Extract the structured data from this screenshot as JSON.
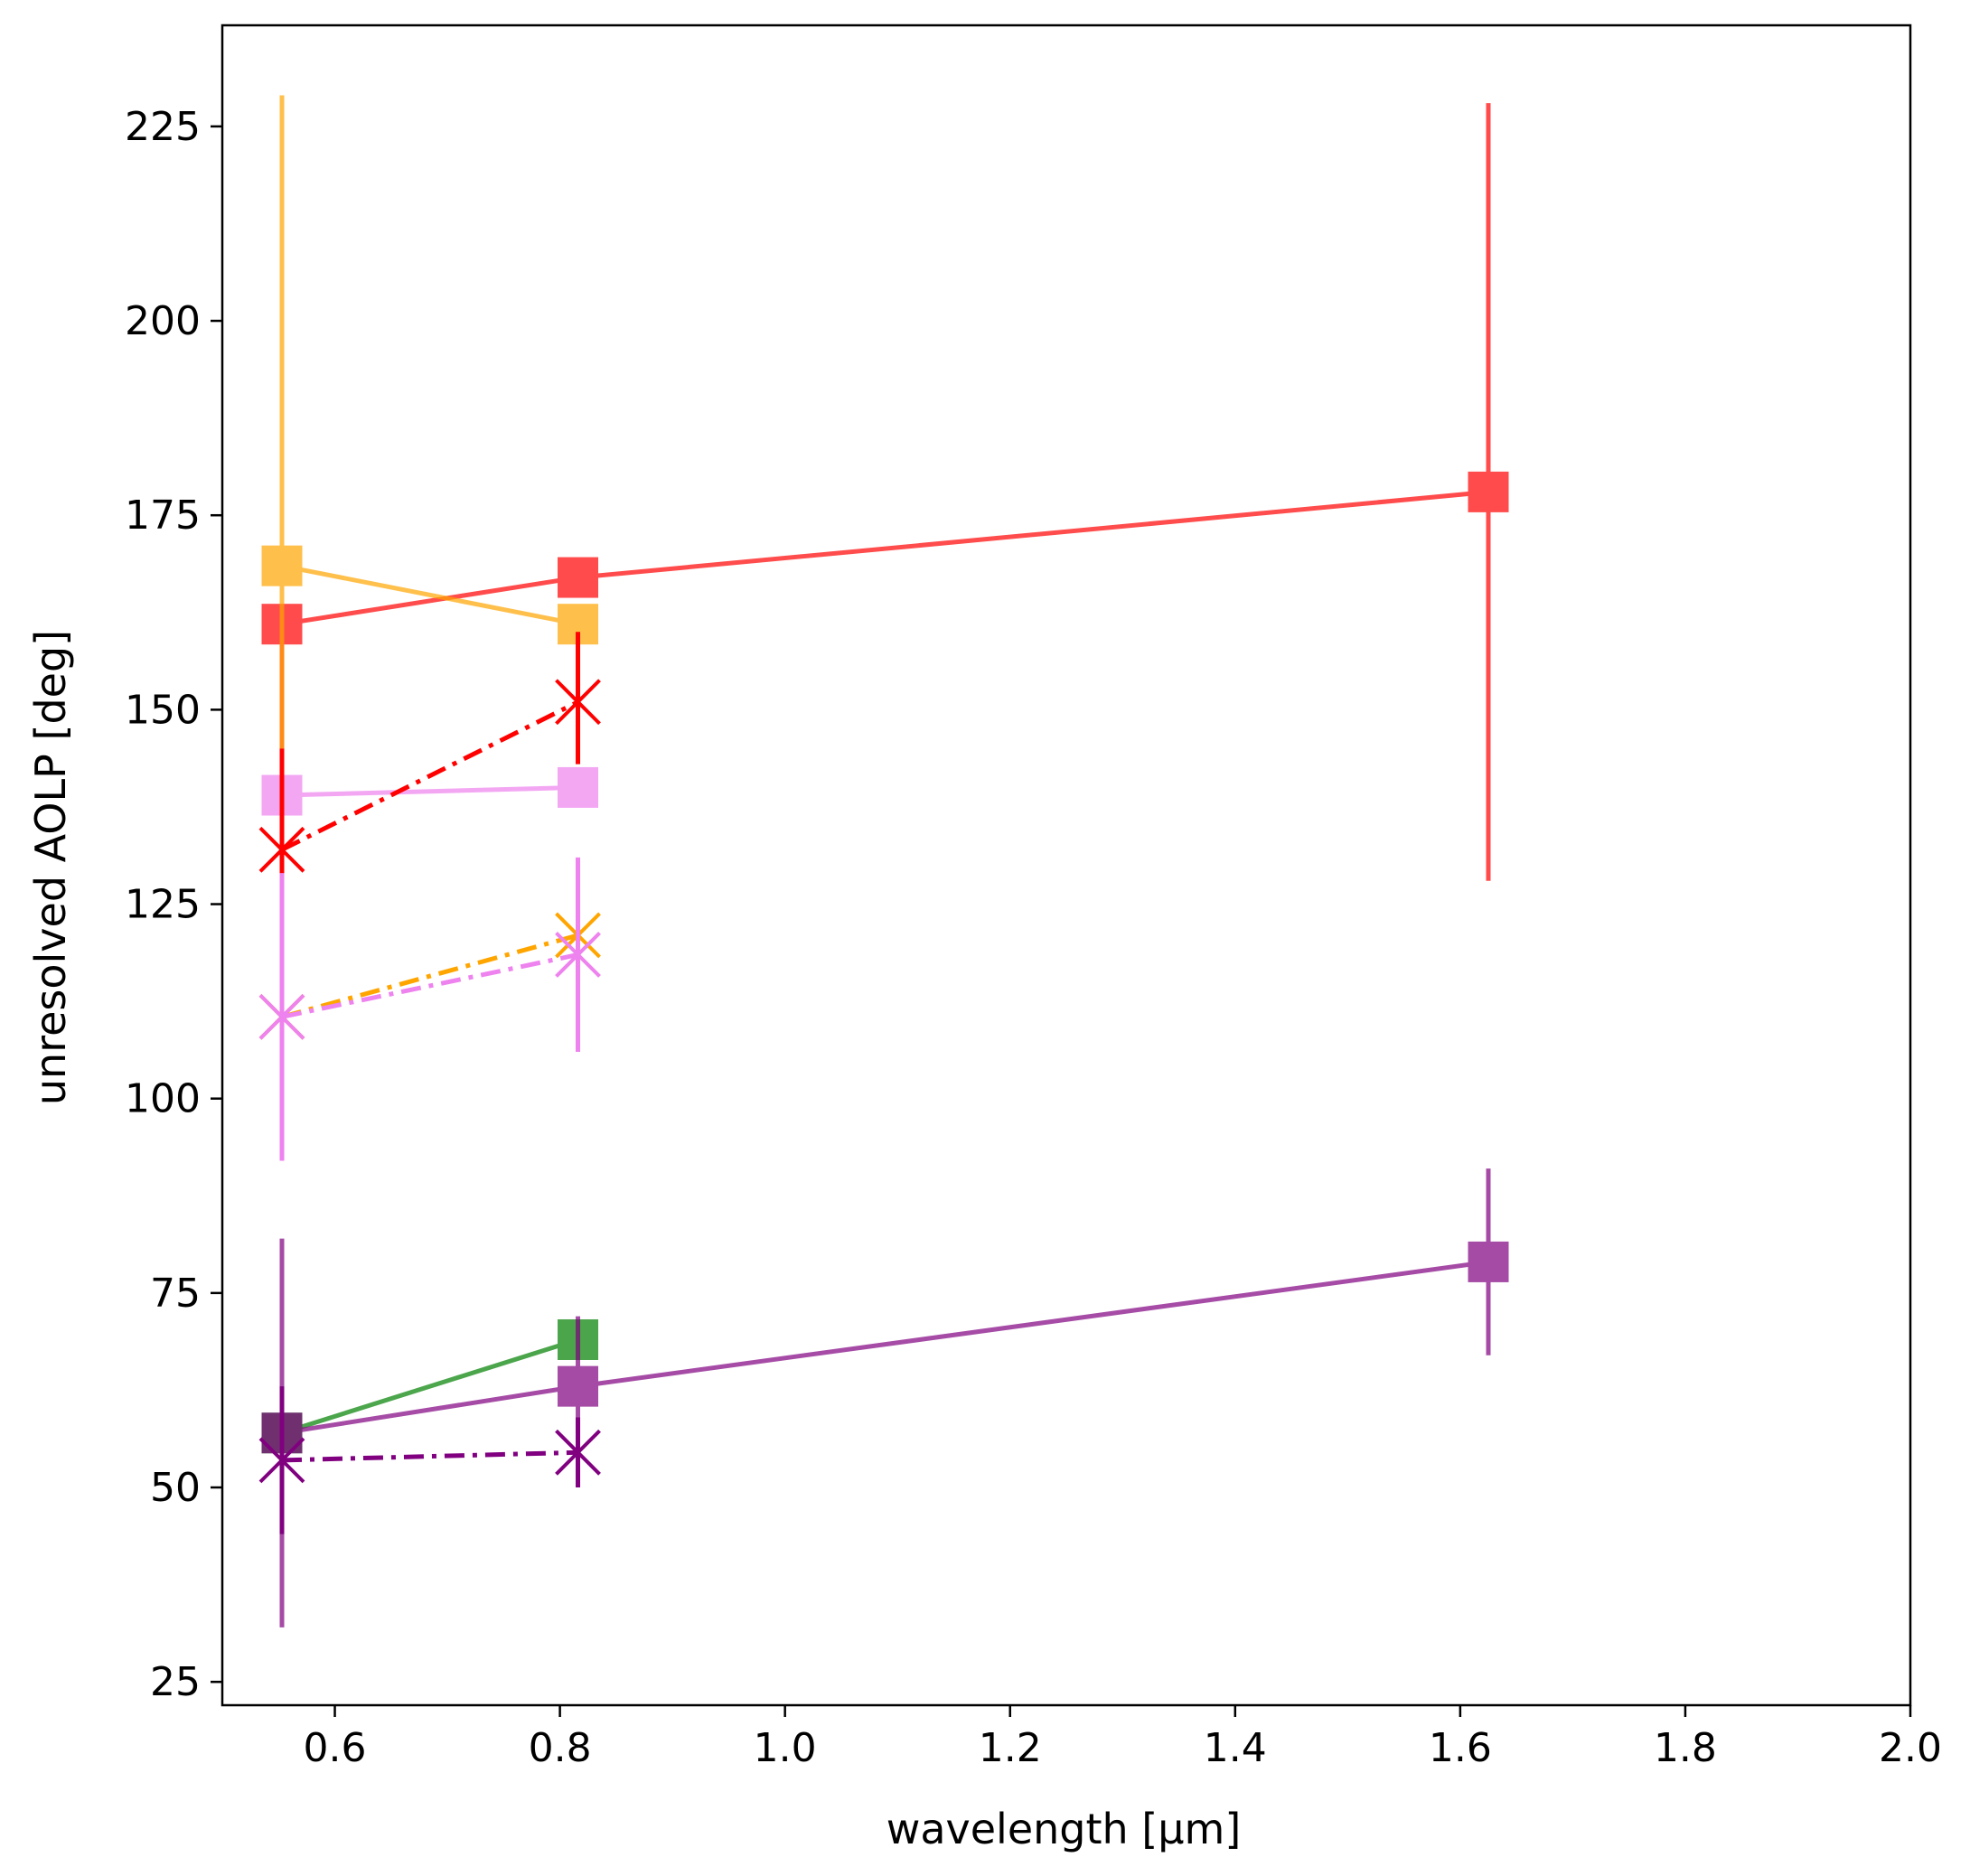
{
  "chart_data": {
    "type": "line",
    "xlabel": "wavelength [μm]",
    "ylabel": "unresolved AOLP [deg]",
    "xlim": [
      0.5,
      2.0
    ],
    "ylim": [
      22,
      238
    ],
    "xticks": [
      0.6,
      0.8,
      1.0,
      1.2,
      1.4,
      1.6,
      1.8,
      2.0
    ],
    "xtick_labels": [
      "0.6",
      "0.8",
      "1.0",
      "1.2",
      "1.4",
      "1.6",
      "1.8",
      "2.0"
    ],
    "yticks": [
      25,
      50,
      75,
      100,
      125,
      150,
      175,
      200,
      225
    ],
    "ytick_labels": [
      "25",
      "50",
      "75",
      "100",
      "125",
      "150",
      "175",
      "200",
      "225"
    ],
    "grid": false,
    "legend": "none",
    "series": [
      {
        "color": "#ff0000",
        "opacity": 0.7,
        "marker": "square",
        "linestyle": "solid",
        "points": [
          {
            "x": 0.553,
            "y": 161,
            "err_lo": 145,
            "err_hi": 161
          },
          {
            "x": 0.816,
            "y": 167,
            "err_lo": 167,
            "err_hi": 167
          },
          {
            "x": 1.625,
            "y": 178,
            "err_lo": 128,
            "err_hi": 228
          }
        ]
      },
      {
        "color": "#ffa500",
        "opacity": 0.7,
        "marker": "square",
        "linestyle": "solid",
        "points": [
          {
            "x": 0.553,
            "y": 168.5,
            "err_lo": 108,
            "err_hi": 229
          },
          {
            "x": 0.816,
            "y": 161,
            "err_lo": 161,
            "err_hi": 161
          }
        ]
      },
      {
        "color": "#ee82ee",
        "opacity": 0.7,
        "marker": "square",
        "linestyle": "solid",
        "points": [
          {
            "x": 0.553,
            "y": 139,
            "err_lo": 110,
            "err_hi": 139
          },
          {
            "x": 0.816,
            "y": 140,
            "err_lo": 140,
            "err_hi": 140
          }
        ]
      },
      {
        "color": "#008000",
        "opacity": 0.7,
        "marker": "square",
        "linestyle": "solid",
        "points": [
          {
            "x": 0.553,
            "y": 57,
            "err_lo": 57,
            "err_hi": 57
          },
          {
            "x": 0.816,
            "y": 69,
            "err_lo": 69,
            "err_hi": 69
          }
        ]
      },
      {
        "color": "#800080",
        "opacity": 0.7,
        "marker": "square",
        "linestyle": "solid",
        "points": [
          {
            "x": 0.553,
            "y": 57,
            "err_lo": 32,
            "err_hi": 82
          },
          {
            "x": 0.816,
            "y": 63,
            "err_lo": 57,
            "err_hi": 72
          },
          {
            "x": 1.625,
            "y": 79,
            "err_lo": 67,
            "err_hi": 91
          }
        ]
      },
      {
        "color": "#ff0000",
        "opacity": 1.0,
        "marker": "x",
        "linestyle": "dashdot",
        "points": [
          {
            "x": 0.553,
            "y": 132,
            "err_lo": 120,
            "err_hi": 145
          },
          {
            "x": 0.816,
            "y": 151,
            "err_lo": 143,
            "err_hi": 160
          }
        ]
      },
      {
        "color": "#ffa500",
        "opacity": 1.0,
        "marker": "x",
        "linestyle": "dashdot",
        "points": [
          {
            "x": 0.553,
            "y": 110.5,
            "err_lo": 105,
            "err_hi": 116
          },
          {
            "x": 0.816,
            "y": 121,
            "err_lo": 115,
            "err_hi": 127
          }
        ]
      },
      {
        "color": "#ee82ee",
        "opacity": 1.0,
        "marker": "x",
        "linestyle": "dashdot",
        "points": [
          {
            "x": 0.553,
            "y": 110.5,
            "err_lo": 92,
            "err_hi": 129
          },
          {
            "x": 0.816,
            "y": 118.5,
            "err_lo": 106,
            "err_hi": 131
          }
        ]
      },
      {
        "color": "#800080",
        "opacity": 1.0,
        "marker": "x",
        "linestyle": "dashdot",
        "points": [
          {
            "x": 0.553,
            "y": 53.5,
            "err_lo": 44,
            "err_hi": 63
          },
          {
            "x": 0.816,
            "y": 54.5,
            "err_lo": 50,
            "err_hi": 59
          }
        ]
      }
    ]
  }
}
